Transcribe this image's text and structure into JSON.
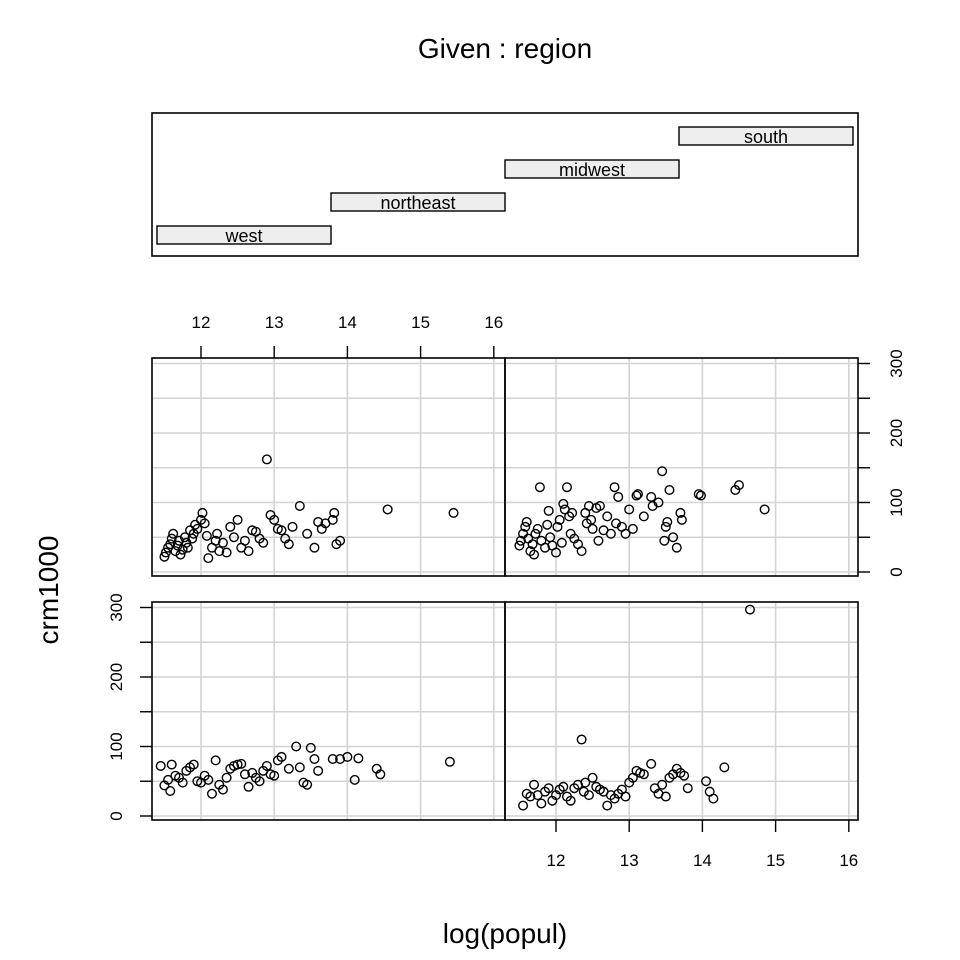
{
  "chart_data": {
    "type": "scatter",
    "title": "Given : region",
    "xlabel": "log(popul)",
    "ylabel": "crm1000",
    "x_ticks": [
      12,
      13,
      14,
      15,
      16
    ],
    "y_ticks": [
      0,
      100,
      200,
      300
    ],
    "xlim": [
      11.25,
      16.25
    ],
    "ylim": [
      -5,
      310
    ],
    "grid": true,
    "given": {
      "levels": [
        "west",
        "northeast",
        "midwest",
        "south"
      ],
      "panel_order": "bottom-left, bottom-right, top-left, top-right"
    },
    "panels": [
      {
        "name": "west",
        "points": [
          [
            11.45,
            72
          ],
          [
            11.5,
            44
          ],
          [
            11.55,
            52
          ],
          [
            11.58,
            36
          ],
          [
            11.6,
            74
          ],
          [
            11.65,
            58
          ],
          [
            11.7,
            55
          ],
          [
            11.75,
            48
          ],
          [
            11.8,
            65
          ],
          [
            11.85,
            70
          ],
          [
            11.9,
            74
          ],
          [
            11.95,
            50
          ],
          [
            12.0,
            48
          ],
          [
            12.05,
            58
          ],
          [
            12.1,
            52
          ],
          [
            12.15,
            32
          ],
          [
            12.2,
            80
          ],
          [
            12.25,
            45
          ],
          [
            12.3,
            38
          ],
          [
            12.35,
            55
          ],
          [
            12.4,
            68
          ],
          [
            12.45,
            72
          ],
          [
            12.5,
            74
          ],
          [
            12.55,
            75
          ],
          [
            12.6,
            60
          ],
          [
            12.65,
            42
          ],
          [
            12.7,
            62
          ],
          [
            12.75,
            55
          ],
          [
            12.8,
            50
          ],
          [
            12.85,
            65
          ],
          [
            12.9,
            72
          ],
          [
            12.95,
            60
          ],
          [
            13.0,
            58
          ],
          [
            13.05,
            80
          ],
          [
            13.1,
            85
          ],
          [
            13.2,
            68
          ],
          [
            13.3,
            100
          ],
          [
            13.35,
            70
          ],
          [
            13.4,
            48
          ],
          [
            13.45,
            45
          ],
          [
            13.5,
            98
          ],
          [
            13.55,
            82
          ],
          [
            13.6,
            65
          ],
          [
            13.8,
            82
          ],
          [
            13.9,
            82
          ],
          [
            14.0,
            85
          ],
          [
            14.1,
            52
          ],
          [
            14.15,
            83
          ],
          [
            14.4,
            68
          ],
          [
            14.45,
            60
          ],
          [
            15.4,
            78
          ]
        ]
      },
      {
        "name": "northeast",
        "points": [
          [
            11.55,
            15
          ],
          [
            11.6,
            32
          ],
          [
            11.65,
            28
          ],
          [
            11.7,
            45
          ],
          [
            11.75,
            30
          ],
          [
            11.8,
            18
          ],
          [
            11.85,
            35
          ],
          [
            11.9,
            40
          ],
          [
            11.95,
            22
          ],
          [
            12.0,
            30
          ],
          [
            12.05,
            38
          ],
          [
            12.1,
            42
          ],
          [
            12.15,
            28
          ],
          [
            12.2,
            22
          ],
          [
            12.25,
            40
          ],
          [
            12.3,
            45
          ],
          [
            12.35,
            110
          ],
          [
            12.38,
            35
          ],
          [
            12.4,
            48
          ],
          [
            12.45,
            30
          ],
          [
            12.5,
            55
          ],
          [
            12.55,
            42
          ],
          [
            12.6,
            38
          ],
          [
            12.65,
            35
          ],
          [
            12.7,
            15
          ],
          [
            12.75,
            30
          ],
          [
            12.8,
            25
          ],
          [
            12.85,
            32
          ],
          [
            12.9,
            38
          ],
          [
            12.95,
            28
          ],
          [
            13.0,
            48
          ],
          [
            13.05,
            55
          ],
          [
            13.1,
            65
          ],
          [
            13.15,
            62
          ],
          [
            13.2,
            60
          ],
          [
            13.3,
            75
          ],
          [
            13.35,
            40
          ],
          [
            13.4,
            32
          ],
          [
            13.45,
            45
          ],
          [
            13.5,
            28
          ],
          [
            13.55,
            55
          ],
          [
            13.6,
            60
          ],
          [
            13.65,
            68
          ],
          [
            13.7,
            62
          ],
          [
            13.75,
            58
          ],
          [
            13.8,
            40
          ],
          [
            14.05,
            50
          ],
          [
            14.1,
            35
          ],
          [
            14.15,
            25
          ],
          [
            14.3,
            70
          ],
          [
            14.65,
            297
          ]
        ]
      },
      {
        "name": "midwest",
        "points": [
          [
            11.5,
            22
          ],
          [
            11.52,
            28
          ],
          [
            11.55,
            35
          ],
          [
            11.58,
            40
          ],
          [
            11.6,
            48
          ],
          [
            11.62,
            55
          ],
          [
            11.65,
            30
          ],
          [
            11.68,
            38
          ],
          [
            11.7,
            45
          ],
          [
            11.72,
            25
          ],
          [
            11.75,
            32
          ],
          [
            11.78,
            50
          ],
          [
            11.8,
            42
          ],
          [
            11.82,
            35
          ],
          [
            11.85,
            60
          ],
          [
            11.88,
            48
          ],
          [
            11.9,
            55
          ],
          [
            11.92,
            68
          ],
          [
            11.95,
            62
          ],
          [
            12.0,
            75
          ],
          [
            12.02,
            85
          ],
          [
            12.05,
            70
          ],
          [
            12.08,
            52
          ],
          [
            12.1,
            20
          ],
          [
            12.15,
            35
          ],
          [
            12.2,
            45
          ],
          [
            12.22,
            55
          ],
          [
            12.25,
            30
          ],
          [
            12.3,
            42
          ],
          [
            12.35,
            28
          ],
          [
            12.4,
            65
          ],
          [
            12.45,
            50
          ],
          [
            12.5,
            75
          ],
          [
            12.55,
            35
          ],
          [
            12.6,
            45
          ],
          [
            12.65,
            30
          ],
          [
            12.7,
            60
          ],
          [
            12.75,
            58
          ],
          [
            12.8,
            48
          ],
          [
            12.85,
            42
          ],
          [
            12.9,
            162
          ],
          [
            12.95,
            82
          ],
          [
            13.0,
            75
          ],
          [
            13.05,
            62
          ],
          [
            13.1,
            60
          ],
          [
            13.15,
            48
          ],
          [
            13.2,
            40
          ],
          [
            13.25,
            65
          ],
          [
            13.35,
            95
          ],
          [
            13.45,
            55
          ],
          [
            13.55,
            35
          ],
          [
            13.6,
            72
          ],
          [
            13.65,
            62
          ],
          [
            13.7,
            70
          ],
          [
            13.8,
            75
          ],
          [
            13.82,
            85
          ],
          [
            13.85,
            40
          ],
          [
            13.9,
            45
          ],
          [
            14.55,
            90
          ],
          [
            15.45,
            85
          ]
        ]
      },
      {
        "name": "south",
        "points": [
          [
            11.5,
            38
          ],
          [
            11.52,
            45
          ],
          [
            11.55,
            55
          ],
          [
            11.58,
            65
          ],
          [
            11.6,
            72
          ],
          [
            11.62,
            48
          ],
          [
            11.65,
            30
          ],
          [
            11.68,
            40
          ],
          [
            11.7,
            25
          ],
          [
            11.72,
            55
          ],
          [
            11.75,
            62
          ],
          [
            11.78,
            122
          ],
          [
            11.8,
            45
          ],
          [
            11.85,
            35
          ],
          [
            11.88,
            68
          ],
          [
            11.9,
            88
          ],
          [
            11.92,
            50
          ],
          [
            11.95,
            38
          ],
          [
            12.0,
            28
          ],
          [
            12.02,
            65
          ],
          [
            12.05,
            75
          ],
          [
            12.08,
            42
          ],
          [
            12.1,
            98
          ],
          [
            12.12,
            90
          ],
          [
            12.15,
            122
          ],
          [
            12.18,
            80
          ],
          [
            12.2,
            55
          ],
          [
            12.22,
            85
          ],
          [
            12.25,
            48
          ],
          [
            12.3,
            40
          ],
          [
            12.35,
            30
          ],
          [
            12.4,
            85
          ],
          [
            12.42,
            70
          ],
          [
            12.45,
            95
          ],
          [
            12.48,
            75
          ],
          [
            12.5,
            62
          ],
          [
            12.55,
            92
          ],
          [
            12.58,
            45
          ],
          [
            12.6,
            95
          ],
          [
            12.65,
            60
          ],
          [
            12.7,
            80
          ],
          [
            12.75,
            55
          ],
          [
            12.8,
            122
          ],
          [
            12.82,
            70
          ],
          [
            12.85,
            108
          ],
          [
            12.9,
            65
          ],
          [
            12.95,
            55
          ],
          [
            13.0,
            90
          ],
          [
            13.05,
            62
          ],
          [
            13.1,
            110
          ],
          [
            13.12,
            112
          ],
          [
            13.2,
            80
          ],
          [
            13.3,
            108
          ],
          [
            13.32,
            95
          ],
          [
            13.4,
            100
          ],
          [
            13.45,
            145
          ],
          [
            13.48,
            45
          ],
          [
            13.5,
            65
          ],
          [
            13.52,
            72
          ],
          [
            13.55,
            118
          ],
          [
            13.6,
            50
          ],
          [
            13.65,
            35
          ],
          [
            13.7,
            85
          ],
          [
            13.72,
            75
          ],
          [
            13.95,
            112
          ],
          [
            13.98,
            110
          ],
          [
            14.45,
            118
          ],
          [
            14.5,
            125
          ],
          [
            14.85,
            90
          ]
        ]
      }
    ]
  }
}
